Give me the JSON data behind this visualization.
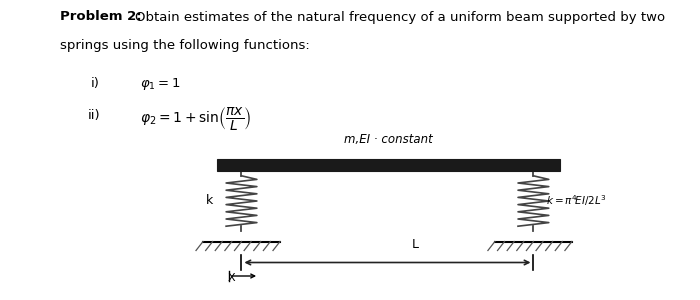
{
  "bg_color": "#ffffff",
  "beam_color": "#1a1a1a",
  "spring_color": "#444444",
  "ground_color": "#666666",
  "dim_color": "#222222",
  "label_constant": "m,EI · constant",
  "label_k_left": "k",
  "label_k_right": "k=π⁴EI/2L³",
  "label_L": "L",
  "title_fontsize": 9.5,
  "body_fontsize": 9.5,
  "diagram_fontsize": 8.5
}
